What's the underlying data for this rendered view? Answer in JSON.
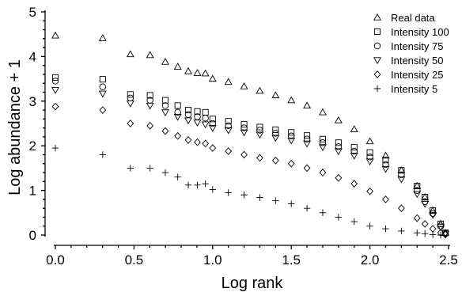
{
  "chart_data": {
    "type": "scatter",
    "title": "",
    "xlabel": "Log rank",
    "ylabel": "Log abundance + 1",
    "xlim": [
      0,
      2.5
    ],
    "ylim": [
      0,
      5
    ],
    "xticks": [
      0.0,
      0.5,
      1.0,
      1.5,
      2.0,
      2.5
    ],
    "xtick_labels": [
      "0.0",
      "0.5",
      "1.0",
      "1.5",
      "2.0",
      "2.5"
    ],
    "yticks": [
      0,
      1,
      2,
      3,
      4,
      5
    ],
    "ytick_labels": [
      "0",
      "1",
      "2",
      "3",
      "4",
      "5"
    ],
    "grid": false,
    "legend_position": "top-right",
    "series": [
      {
        "name": "Real data",
        "marker": "triangle-up",
        "x": [
          0,
          0.301,
          0.477,
          0.602,
          0.699,
          0.778,
          0.845,
          0.903,
          0.954,
          1.0,
          1.1,
          1.2,
          1.3,
          1.4,
          1.5,
          1.6,
          1.7,
          1.8,
          1.9,
          2.0,
          2.1,
          2.2,
          2.3,
          2.35,
          2.4,
          2.45,
          2.48
        ],
        "y": [
          4.47,
          4.41,
          4.05,
          4.03,
          3.88,
          3.77,
          3.67,
          3.63,
          3.62,
          3.5,
          3.43,
          3.33,
          3.23,
          3.13,
          3.02,
          2.9,
          2.75,
          2.57,
          2.37,
          2.1,
          1.78,
          1.45,
          1.1,
          0.85,
          0.55,
          0.25,
          0.05
        ]
      },
      {
        "name": "Intensity 100",
        "marker": "square",
        "x": [
          0,
          0.301,
          0.477,
          0.602,
          0.699,
          0.778,
          0.845,
          0.903,
          0.954,
          1.0,
          1.1,
          1.2,
          1.3,
          1.4,
          1.5,
          1.6,
          1.7,
          1.8,
          1.9,
          2.0,
          2.1,
          2.2,
          2.3,
          2.35,
          2.4,
          2.45,
          2.48
        ],
        "y": [
          3.53,
          3.49,
          3.15,
          3.13,
          3.02,
          2.9,
          2.8,
          2.77,
          2.75,
          2.6,
          2.55,
          2.48,
          2.42,
          2.36,
          2.3,
          2.23,
          2.15,
          2.07,
          1.97,
          1.85,
          1.68,
          1.45,
          1.1,
          0.85,
          0.55,
          0.25,
          0.05
        ]
      },
      {
        "name": "Intensity 75",
        "marker": "circle",
        "x": [
          0,
          0.301,
          0.477,
          0.602,
          0.699,
          0.778,
          0.845,
          0.903,
          0.954,
          1.0,
          1.1,
          1.2,
          1.3,
          1.4,
          1.5,
          1.6,
          1.7,
          1.8,
          1.9,
          2.0,
          2.1,
          2.2,
          2.3,
          2.35,
          2.4,
          2.45,
          2.48
        ],
        "y": [
          3.45,
          3.32,
          3.07,
          3.02,
          2.9,
          2.75,
          2.7,
          2.65,
          2.62,
          2.5,
          2.45,
          2.4,
          2.35,
          2.28,
          2.22,
          2.15,
          2.07,
          1.98,
          1.88,
          1.75,
          1.58,
          1.35,
          1.0,
          0.75,
          0.48,
          0.2,
          0.04
        ]
      },
      {
        "name": "Intensity 50",
        "marker": "triangle-down",
        "x": [
          0,
          0.301,
          0.477,
          0.602,
          0.699,
          0.778,
          0.845,
          0.903,
          0.954,
          1.0,
          1.1,
          1.2,
          1.3,
          1.4,
          1.5,
          1.6,
          1.7,
          1.8,
          1.9,
          2.0,
          2.1,
          2.2,
          2.3,
          2.35,
          2.4,
          2.45,
          2.48
        ],
        "y": [
          3.25,
          3.17,
          2.95,
          2.9,
          2.75,
          2.65,
          2.57,
          2.52,
          2.48,
          2.4,
          2.35,
          2.3,
          2.25,
          2.18,
          2.12,
          2.05,
          1.97,
          1.88,
          1.78,
          1.65,
          1.48,
          1.25,
          0.92,
          0.7,
          0.45,
          0.18,
          0.03
        ]
      },
      {
        "name": "Intensity 25",
        "marker": "diamond",
        "x": [
          0,
          0.301,
          0.477,
          0.602,
          0.699,
          0.778,
          0.845,
          0.903,
          0.954,
          1.0,
          1.1,
          1.2,
          1.3,
          1.4,
          1.5,
          1.6,
          1.7,
          1.8,
          1.9,
          2.0,
          2.1,
          2.2,
          2.3,
          2.35,
          2.4,
          2.45,
          2.48
        ],
        "y": [
          2.88,
          2.8,
          2.5,
          2.45,
          2.33,
          2.22,
          2.13,
          2.08,
          2.05,
          1.95,
          1.88,
          1.8,
          1.73,
          1.67,
          1.6,
          1.5,
          1.4,
          1.28,
          1.15,
          0.98,
          0.8,
          0.6,
          0.38,
          0.25,
          0.14,
          0.05,
          0.01
        ]
      },
      {
        "name": "Intensity 5",
        "marker": "plus",
        "x": [
          0,
          0.301,
          0.477,
          0.602,
          0.699,
          0.778,
          0.845,
          0.903,
          0.954,
          1.0,
          1.1,
          1.2,
          1.3,
          1.4,
          1.5,
          1.6,
          1.7,
          1.8,
          1.9,
          2.0,
          2.1,
          2.2,
          2.3,
          2.35,
          2.4,
          2.45
        ],
        "y": [
          1.95,
          1.8,
          1.5,
          1.5,
          1.4,
          1.3,
          1.12,
          1.12,
          1.15,
          1.02,
          0.95,
          0.9,
          0.84,
          0.77,
          0.7,
          0.6,
          0.5,
          0.4,
          0.3,
          0.2,
          0.14,
          0.09,
          0.05,
          0.03,
          0.01,
          0.0
        ]
      }
    ]
  }
}
